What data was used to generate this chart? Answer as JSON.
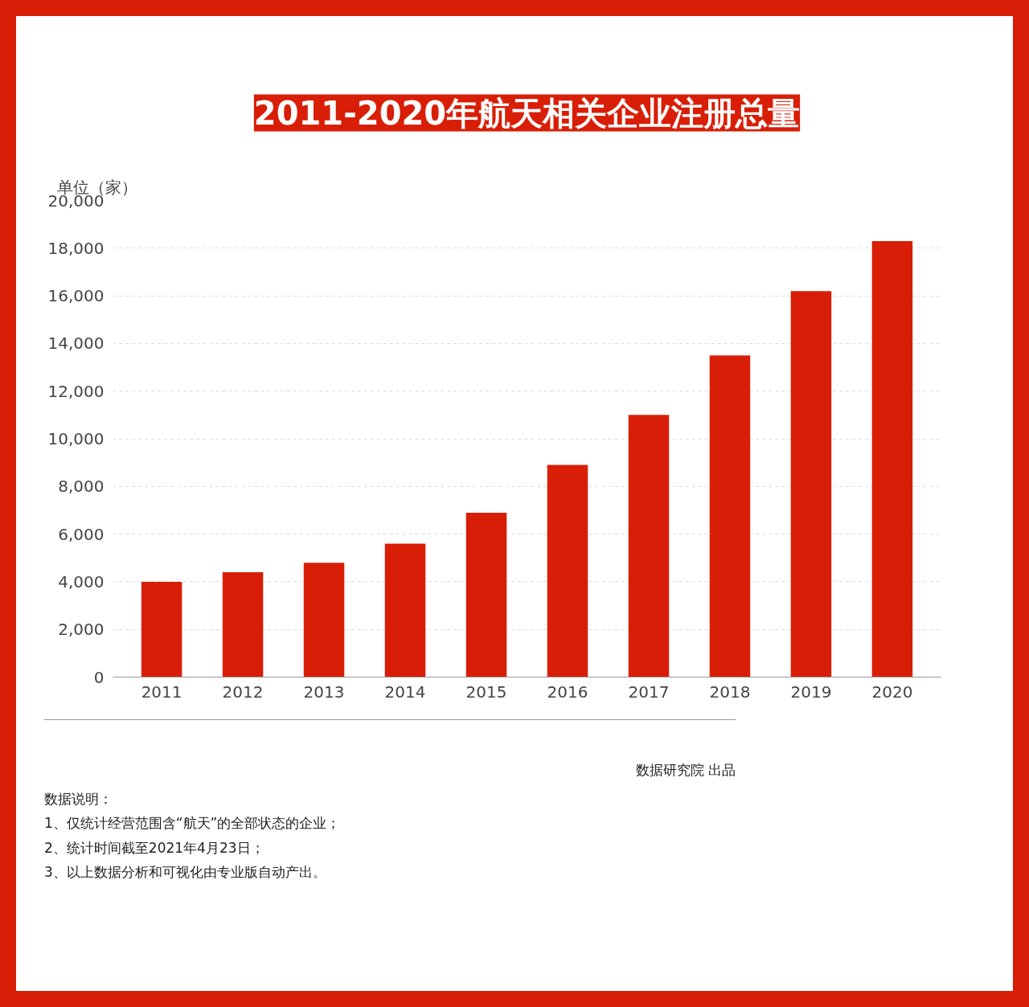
{
  "chart_data": {
    "type": "bar",
    "title": "2011-2020年航天相关企业注册总量",
    "ylabel": "单位（家）",
    "categories": [
      "2011",
      "2012",
      "2013",
      "2014",
      "2015",
      "2016",
      "2017",
      "2018",
      "2019",
      "2020"
    ],
    "values": [
      4000,
      4400,
      4800,
      5600,
      6900,
      8900,
      11000,
      13500,
      16200,
      18300
    ],
    "color": "#d81e06",
    "ylim": [
      0,
      20000
    ],
    "yticks": [
      {
        "value": 0,
        "label": "0"
      },
      {
        "value": 2000,
        "label": "2,000"
      },
      {
        "value": 4000,
        "label": "4,000"
      },
      {
        "value": 6000,
        "label": "6,000"
      },
      {
        "value": 8000,
        "label": "8,000"
      },
      {
        "value": 10000,
        "label": "10,000"
      },
      {
        "value": 12000,
        "label": "12,000"
      },
      {
        "value": 14000,
        "label": "14,000"
      },
      {
        "value": 16000,
        "label": "16,000"
      },
      {
        "value": 18000,
        "label": "18,000"
      },
      {
        "value": 20000,
        "label": "20,000"
      }
    ],
    "grid": "y",
    "annotations": [
      "数据研究院 出品",
      "数据说明：",
      "1、仅统计经营范围含“航天”的全部状态的企业；",
      "2、统计时间截至2021年4月23日；",
      "3、以上数据分析和可视化由专业版自动产出。"
    ]
  }
}
